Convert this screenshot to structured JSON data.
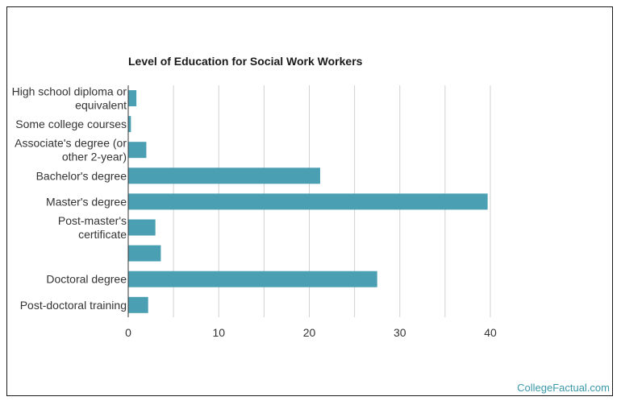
{
  "credit": "CollegeFactual.com",
  "colors": {
    "bar": "#4a9fb3",
    "grid": "#d0d0d0",
    "axis": "#333333",
    "credit": "#3a98a8"
  },
  "chart_data": {
    "type": "bar",
    "orientation": "horizontal",
    "title": "Level of Education for Social Work Workers",
    "xlabel": "",
    "ylabel": "",
    "xlim": [
      0,
      40
    ],
    "xticks": [
      0,
      10,
      20,
      30,
      40
    ],
    "grid": true,
    "legend": "none",
    "categories": [
      [
        "High school diploma or",
        "equivalent"
      ],
      [
        "Some college courses"
      ],
      [
        "Associate's degree (or",
        "other 2-year)"
      ],
      [
        "Bachelor's degree"
      ],
      [
        "Master's degree"
      ],
      [
        "Post-master's",
        "certificate"
      ],
      [],
      [
        "Doctoral degree"
      ],
      [
        "Post-doctoral training"
      ]
    ],
    "values": [
      0.9,
      0.3,
      2.0,
      21.2,
      39.7,
      3.0,
      3.6,
      27.5,
      2.2
    ]
  }
}
